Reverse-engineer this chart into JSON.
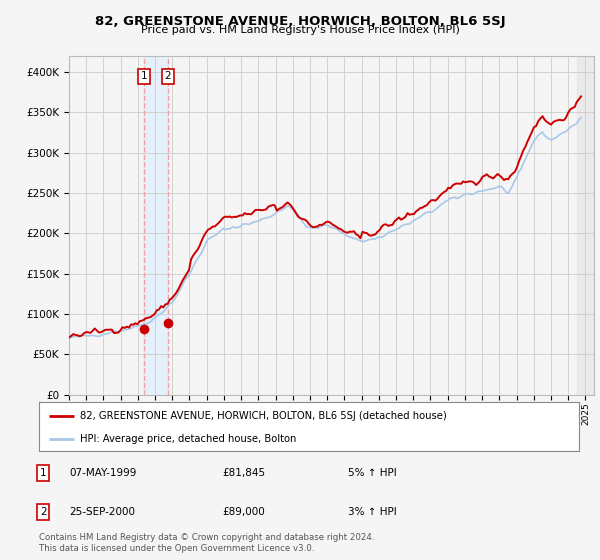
{
  "title": "82, GREENSTONE AVENUE, HORWICH, BOLTON, BL6 5SJ",
  "subtitle": "Price paid vs. HM Land Registry's House Price Index (HPI)",
  "legend_line1": "82, GREENSTONE AVENUE, HORWICH, BOLTON, BL6 5SJ (detached house)",
  "legend_line2": "HPI: Average price, detached house, Bolton",
  "transaction1_date": "07-MAY-1999",
  "transaction1_price": "£81,845",
  "transaction1_hpi": "5% ↑ HPI",
  "transaction2_date": "25-SEP-2000",
  "transaction2_price": "£89,000",
  "transaction2_hpi": "3% ↑ HPI",
  "footer": "Contains HM Land Registry data © Crown copyright and database right 2024.\nThis data is licensed under the Open Government Licence v3.0.",
  "hpi_color": "#a8c8e8",
  "price_color": "#cc0000",
  "marker_color": "#cc0000",
  "vline_color": "#f0a0a0",
  "vfill_color": "#ddeeff",
  "background_color": "#f5f5f5",
  "grid_color": "#cccccc",
  "t1_x": 1999.35,
  "t1_y": 81845,
  "t2_x": 2000.73,
  "t2_y": 89000,
  "xlim": [
    1995,
    2025.5
  ],
  "ylim": [
    0,
    420000
  ],
  "yticks": [
    0,
    50000,
    100000,
    150000,
    200000,
    250000,
    300000,
    350000,
    400000
  ]
}
